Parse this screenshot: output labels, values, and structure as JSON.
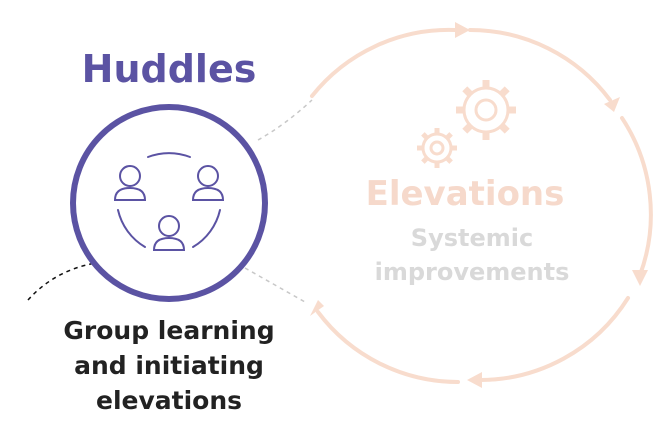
{
  "huddles": {
    "title": "Huddles",
    "caption_lines": [
      "Group learning",
      "and initiating",
      "elevations"
    ]
  },
  "elevations": {
    "title": "Elevations",
    "subtitle_lines": [
      "Systemic",
      "improvements"
    ]
  },
  "colors": {
    "primary_purple": "#5b53a3",
    "faded_peach": "#f6d9cb",
    "faded_gray": "#d9d9d9",
    "caption_text": "#222222"
  }
}
